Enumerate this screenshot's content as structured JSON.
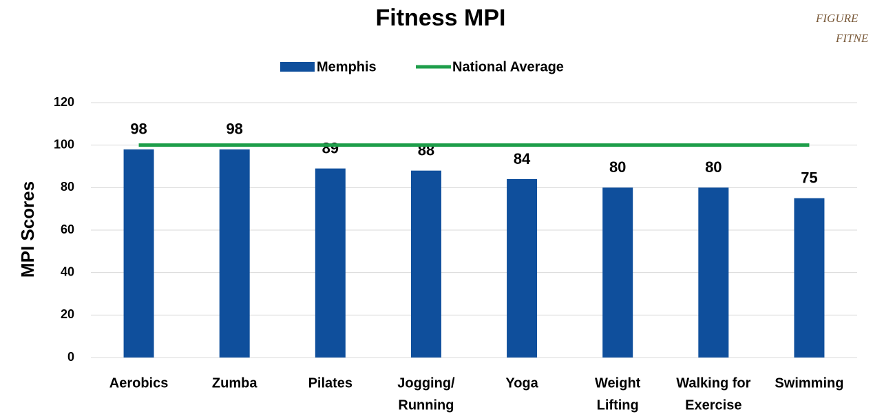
{
  "chart_data": {
    "type": "bar",
    "title": "Fitness MPI",
    "annotations": [
      "FIGURE",
      "FITNE"
    ],
    "y_label": "MPI Scores",
    "categories": [
      [
        "Aerobics"
      ],
      [
        "Zumba"
      ],
      [
        "Pilates"
      ],
      [
        "Jogging/",
        "Running"
      ],
      [
        "Yoga"
      ],
      [
        "Weight",
        "Lifting"
      ],
      [
        "Walking for",
        "Exercise"
      ],
      [
        "Swimming"
      ]
    ],
    "series": [
      {
        "name": "Memphis",
        "color": "#0f4f9c",
        "values": [
          98,
          98,
          89,
          88,
          84,
          80,
          80,
          75
        ]
      },
      {
        "name": "National Average",
        "color": "#1e9e4a",
        "type": "line",
        "values": [
          100,
          100,
          100,
          100,
          100,
          100,
          100,
          100
        ]
      }
    ],
    "ylim": [
      0,
      120
    ],
    "yticks": [
      0,
      20,
      40,
      60,
      80,
      100,
      120
    ],
    "grid": true,
    "legend": "top"
  }
}
